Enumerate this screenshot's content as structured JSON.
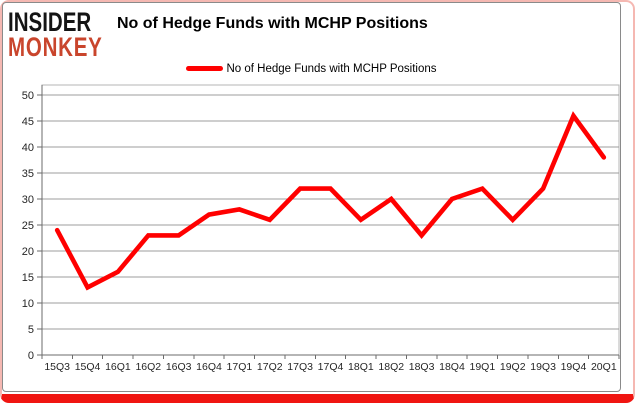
{
  "logo": {
    "line1": "INSIDER",
    "line2": "MONKEY"
  },
  "header": {
    "title": "No of Hedge Funds with MCHP Positions"
  },
  "legend": {
    "label": "No of Hedge Funds with MCHP Positions"
  },
  "colors": {
    "series": "#ff0000",
    "frame_bottom": "#f01511",
    "frame_edge": "#f5b8b2",
    "logo_accent": "#c9452c",
    "logo_main": "#141414",
    "gridline": "#9c9c9c",
    "axis": "#6b6b6b",
    "plot_border": "#b5b5b5",
    "tick_label": "#262626"
  },
  "chart_data": {
    "type": "line",
    "title": "No of Hedge Funds with MCHP Positions",
    "categories": [
      "15Q3",
      "15Q4",
      "16Q1",
      "16Q2",
      "16Q3",
      "16Q4",
      "17Q1",
      "17Q2",
      "17Q3",
      "17Q4",
      "18Q1",
      "18Q2",
      "18Q3",
      "18Q4",
      "19Q1",
      "19Q2",
      "19Q3",
      "19Q4",
      "20Q1"
    ],
    "series": [
      {
        "name": "No of Hedge Funds with MCHP Positions",
        "values": [
          24,
          13,
          16,
          23,
          23,
          27,
          28,
          26,
          32,
          32,
          26,
          30,
          23,
          30,
          32,
          26,
          32,
          46,
          38
        ]
      }
    ],
    "xlabel": "",
    "ylabel": "",
    "ylim": [
      0,
      50
    ],
    "ytick_step": 5,
    "grid": true,
    "legend_position": "top-center",
    "line_color": "#ff0000"
  }
}
